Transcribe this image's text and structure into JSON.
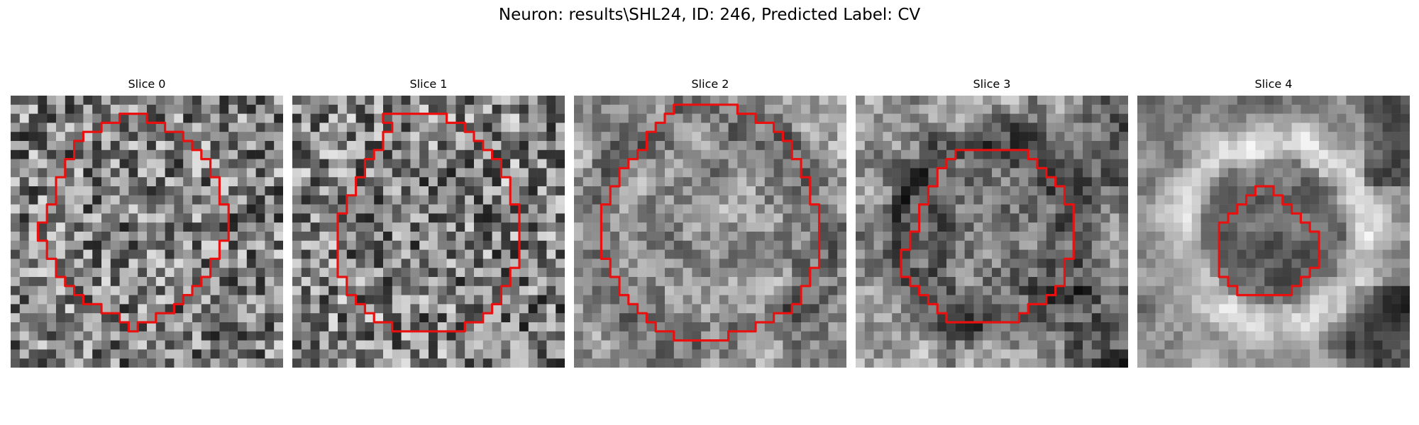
{
  "figure": {
    "title": "Neuron: results\\SHL24, ID: 246, Predicted Label: CV",
    "outline_color": "#e8110f"
  },
  "slices": [
    {
      "label": "Slice 0",
      "contour": [
        [
          13,
          2
        ],
        [
          15,
          2
        ],
        [
          15,
          3
        ],
        [
          17,
          3
        ],
        [
          17,
          4
        ],
        [
          19,
          4
        ],
        [
          19,
          5
        ],
        [
          20,
          5
        ],
        [
          20,
          6
        ],
        [
          21,
          6
        ],
        [
          21,
          7
        ],
        [
          22,
          7
        ],
        [
          22,
          9
        ],
        [
          23,
          9
        ],
        [
          23,
          12
        ],
        [
          24,
          12
        ],
        [
          24,
          16
        ],
        [
          23,
          16
        ],
        [
          23,
          18
        ],
        [
          22,
          18
        ],
        [
          22,
          20
        ],
        [
          21,
          20
        ],
        [
          21,
          21
        ],
        [
          20,
          21
        ],
        [
          20,
          22
        ],
        [
          19,
          22
        ],
        [
          19,
          23
        ],
        [
          18,
          23
        ],
        [
          18,
          24
        ],
        [
          16,
          24
        ],
        [
          16,
          25
        ],
        [
          14,
          25
        ],
        [
          14,
          26
        ],
        [
          13,
          26
        ],
        [
          13,
          25
        ],
        [
          12,
          25
        ],
        [
          12,
          24
        ],
        [
          10,
          24
        ],
        [
          10,
          23
        ],
        [
          8,
          23
        ],
        [
          8,
          22
        ],
        [
          7,
          22
        ],
        [
          7,
          21
        ],
        [
          6,
          21
        ],
        [
          6,
          20
        ],
        [
          5,
          20
        ],
        [
          5,
          18
        ],
        [
          4,
          18
        ],
        [
          4,
          16
        ],
        [
          3,
          16
        ],
        [
          3,
          14
        ],
        [
          4,
          14
        ],
        [
          4,
          12
        ],
        [
          5,
          12
        ],
        [
          5,
          9
        ],
        [
          6,
          9
        ],
        [
          6,
          7
        ],
        [
          7,
          7
        ],
        [
          7,
          5
        ],
        [
          8,
          5
        ],
        [
          8,
          4
        ],
        [
          10,
          4
        ],
        [
          10,
          3
        ],
        [
          12,
          3
        ],
        [
          12,
          2
        ]
      ]
    },
    {
      "label": "Slice 1",
      "contour": [
        [
          10,
          2
        ],
        [
          17,
          2
        ],
        [
          17,
          3
        ],
        [
          19,
          3
        ],
        [
          19,
          4
        ],
        [
          20,
          4
        ],
        [
          20,
          5
        ],
        [
          21,
          5
        ],
        [
          21,
          6
        ],
        [
          22,
          6
        ],
        [
          22,
          7
        ],
        [
          23,
          7
        ],
        [
          23,
          9
        ],
        [
          24,
          9
        ],
        [
          24,
          12
        ],
        [
          25,
          12
        ],
        [
          25,
          19
        ],
        [
          24,
          19
        ],
        [
          24,
          21
        ],
        [
          23,
          21
        ],
        [
          23,
          23
        ],
        [
          22,
          23
        ],
        [
          22,
          24
        ],
        [
          21,
          24
        ],
        [
          21,
          25
        ],
        [
          19,
          25
        ],
        [
          19,
          26
        ],
        [
          11,
          26
        ],
        [
          11,
          25
        ],
        [
          9,
          25
        ],
        [
          9,
          24
        ],
        [
          8,
          24
        ],
        [
          8,
          23
        ],
        [
          7,
          23
        ],
        [
          7,
          22
        ],
        [
          6,
          22
        ],
        [
          6,
          20
        ],
        [
          5,
          20
        ],
        [
          5,
          13
        ],
        [
          6,
          13
        ],
        [
          6,
          11
        ],
        [
          7,
          11
        ],
        [
          7,
          9
        ],
        [
          8,
          9
        ],
        [
          8,
          7
        ],
        [
          9,
          7
        ],
        [
          9,
          6
        ],
        [
          10,
          6
        ],
        [
          10,
          4
        ],
        [
          11,
          4
        ],
        [
          11,
          3
        ],
        [
          10,
          3
        ]
      ]
    },
    {
      "label": "Slice 2",
      "contour": [
        [
          11,
          1
        ],
        [
          18,
          1
        ],
        [
          18,
          2
        ],
        [
          20,
          2
        ],
        [
          20,
          3
        ],
        [
          22,
          3
        ],
        [
          22,
          4
        ],
        [
          23,
          4
        ],
        [
          23,
          5
        ],
        [
          24,
          5
        ],
        [
          24,
          7
        ],
        [
          25,
          7
        ],
        [
          25,
          9
        ],
        [
          26,
          9
        ],
        [
          26,
          12
        ],
        [
          27,
          12
        ],
        [
          27,
          19
        ],
        [
          26,
          19
        ],
        [
          26,
          21
        ],
        [
          25,
          21
        ],
        [
          25,
          23
        ],
        [
          24,
          23
        ],
        [
          24,
          24
        ],
        [
          22,
          24
        ],
        [
          22,
          25
        ],
        [
          20,
          25
        ],
        [
          20,
          26
        ],
        [
          17,
          26
        ],
        [
          17,
          27
        ],
        [
          11,
          27
        ],
        [
          11,
          26
        ],
        [
          9,
          26
        ],
        [
          9,
          25
        ],
        [
          8,
          25
        ],
        [
          8,
          24
        ],
        [
          7,
          24
        ],
        [
          7,
          23
        ],
        [
          6,
          23
        ],
        [
          6,
          22
        ],
        [
          5,
          22
        ],
        [
          5,
          20
        ],
        [
          4,
          20
        ],
        [
          4,
          18
        ],
        [
          3,
          18
        ],
        [
          3,
          12
        ],
        [
          4,
          12
        ],
        [
          4,
          10
        ],
        [
          5,
          10
        ],
        [
          5,
          8
        ],
        [
          6,
          8
        ],
        [
          6,
          7
        ],
        [
          7,
          7
        ],
        [
          7,
          6
        ],
        [
          8,
          6
        ],
        [
          8,
          4
        ],
        [
          9,
          4
        ],
        [
          9,
          3
        ],
        [
          10,
          3
        ],
        [
          10,
          2
        ],
        [
          11,
          2
        ]
      ]
    },
    {
      "label": "Slice 3",
      "contour": [
        [
          11,
          6
        ],
        [
          19,
          6
        ],
        [
          19,
          7
        ],
        [
          20,
          7
        ],
        [
          20,
          8
        ],
        [
          21,
          8
        ],
        [
          21,
          9
        ],
        [
          22,
          9
        ],
        [
          22,
          10
        ],
        [
          23,
          10
        ],
        [
          23,
          12
        ],
        [
          24,
          12
        ],
        [
          24,
          18
        ],
        [
          23,
          18
        ],
        [
          23,
          21
        ],
        [
          22,
          21
        ],
        [
          22,
          22
        ],
        [
          21,
          22
        ],
        [
          21,
          23
        ],
        [
          19,
          23
        ],
        [
          19,
          24
        ],
        [
          18,
          24
        ],
        [
          18,
          25
        ],
        [
          10,
          25
        ],
        [
          10,
          24
        ],
        [
          9,
          24
        ],
        [
          9,
          23
        ],
        [
          8,
          23
        ],
        [
          8,
          22
        ],
        [
          7,
          22
        ],
        [
          7,
          21
        ],
        [
          6,
          21
        ],
        [
          6,
          20
        ],
        [
          5,
          20
        ],
        [
          5,
          17
        ],
        [
          6,
          17
        ],
        [
          6,
          15
        ],
        [
          7,
          15
        ],
        [
          7,
          12
        ],
        [
          8,
          12
        ],
        [
          8,
          10
        ],
        [
          9,
          10
        ],
        [
          9,
          8
        ],
        [
          10,
          8
        ],
        [
          10,
          7
        ],
        [
          11,
          7
        ]
      ]
    },
    {
      "label": "Slice 4",
      "contour": [
        [
          14,
          10
        ],
        [
          15,
          10
        ],
        [
          15,
          11
        ],
        [
          16,
          11
        ],
        [
          16,
          12
        ],
        [
          17,
          12
        ],
        [
          17,
          13
        ],
        [
          18,
          13
        ],
        [
          18,
          14
        ],
        [
          19,
          14
        ],
        [
          19,
          15
        ],
        [
          20,
          15
        ],
        [
          20,
          19
        ],
        [
          19,
          19
        ],
        [
          19,
          20
        ],
        [
          18,
          20
        ],
        [
          18,
          21
        ],
        [
          17,
          21
        ],
        [
          17,
          22
        ],
        [
          11,
          22
        ],
        [
          11,
          21
        ],
        [
          10,
          21
        ],
        [
          10,
          20
        ],
        [
          9,
          20
        ],
        [
          9,
          19
        ],
        [
          9,
          14
        ],
        [
          10,
          14
        ],
        [
          10,
          13
        ],
        [
          11,
          13
        ],
        [
          11,
          12
        ],
        [
          12,
          12
        ],
        [
          12,
          11
        ],
        [
          13,
          11
        ],
        [
          13,
          10
        ]
      ]
    }
  ]
}
